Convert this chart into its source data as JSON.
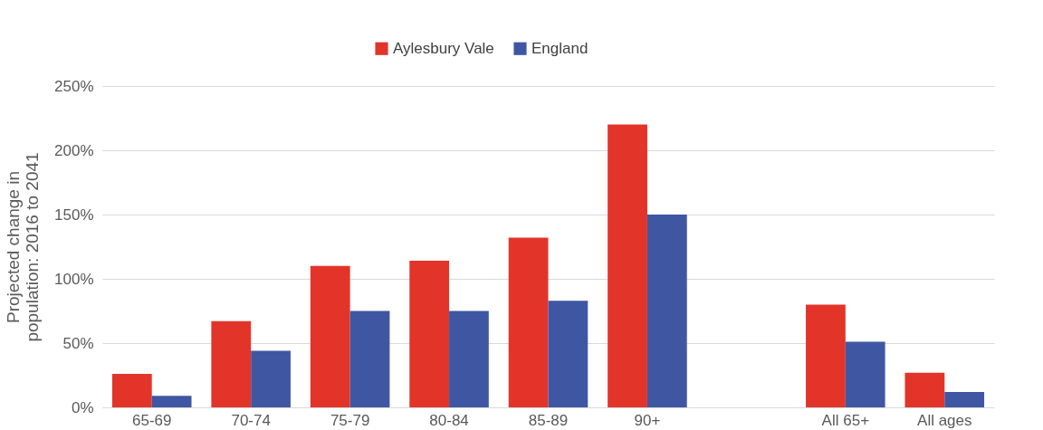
{
  "chart_data": {
    "type": "bar",
    "ylabel": "Projected change in population: 2016 to 2041",
    "categories": [
      "65-69",
      "70-74",
      "75-79",
      "80-84",
      "85-89",
      "90+",
      null,
      "All 65+",
      "All ages"
    ],
    "series": [
      {
        "name": "Aylesbury Vale",
        "color": "#e3342a",
        "values": [
          26,
          67,
          110,
          114,
          132,
          220,
          null,
          80,
          27
        ]
      },
      {
        "name": "England",
        "color": "#3f57a3",
        "values": [
          9,
          44,
          75,
          75,
          83,
          150,
          null,
          51,
          12
        ]
      }
    ],
    "ylim": [
      0,
      250
    ],
    "yticks": [
      {
        "value": 0,
        "label": "0%"
      },
      {
        "value": 50,
        "label": "50%"
      },
      {
        "value": 100,
        "label": "100%"
      },
      {
        "value": 150,
        "label": "150%"
      },
      {
        "value": 200,
        "label": "200%"
      },
      {
        "value": 250,
        "label": "250%"
      }
    ],
    "grid": "y",
    "legend": "top"
  }
}
